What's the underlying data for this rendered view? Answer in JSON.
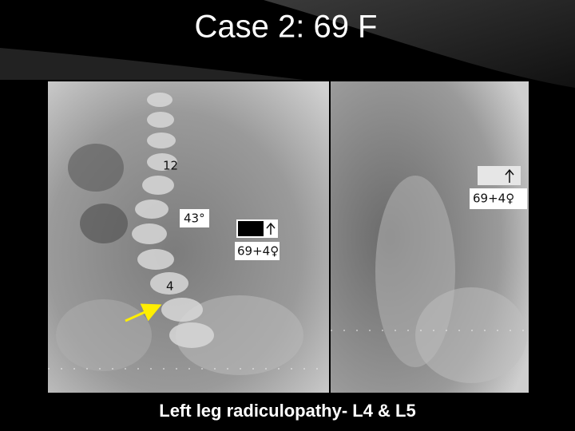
{
  "header": {
    "title": "Case 2: 69 F"
  },
  "images": [
    {
      "labels": [
        "12",
        "43°",
        "4",
        "69+4♀"
      ]
    },
    {
      "labels": [
        "69+4♀"
      ]
    }
  ],
  "caption": "Left leg radiculopathy- L4 & L5"
}
